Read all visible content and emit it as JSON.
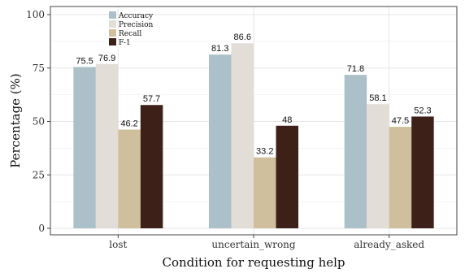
{
  "chart_data": {
    "type": "bar",
    "categories": [
      "lost",
      "uncertain_wrong",
      "already_asked"
    ],
    "series": [
      {
        "name": "Accuracy",
        "color": "#abc0c8",
        "values": [
          75.5,
          81.3,
          71.8
        ],
        "labels": [
          "75.5",
          "81.3",
          "71.8"
        ]
      },
      {
        "name": "Precision",
        "color": "#e2ddd6",
        "values": [
          76.9,
          86.6,
          58.1
        ],
        "labels": [
          "76.9",
          "86.6",
          "58.1"
        ]
      },
      {
        "name": "Recall",
        "color": "#cfbf9c",
        "values": [
          46.2,
          33.2,
          47.5
        ],
        "labels": [
          "46.2",
          "33.2",
          "47.5"
        ]
      },
      {
        "name": "F-1",
        "color": "#3d2119",
        "values": [
          57.7,
          48,
          52.3
        ],
        "labels": [
          "57.7",
          "48",
          "52.3"
        ]
      }
    ],
    "title": "",
    "xlabel": "Condition for requesting help",
    "ylabel": "Percentage (%)",
    "ylim": [
      0,
      100
    ],
    "yticks": [
      0,
      25,
      50,
      75,
      100
    ],
    "grid": true,
    "legend_position": "top-left"
  }
}
